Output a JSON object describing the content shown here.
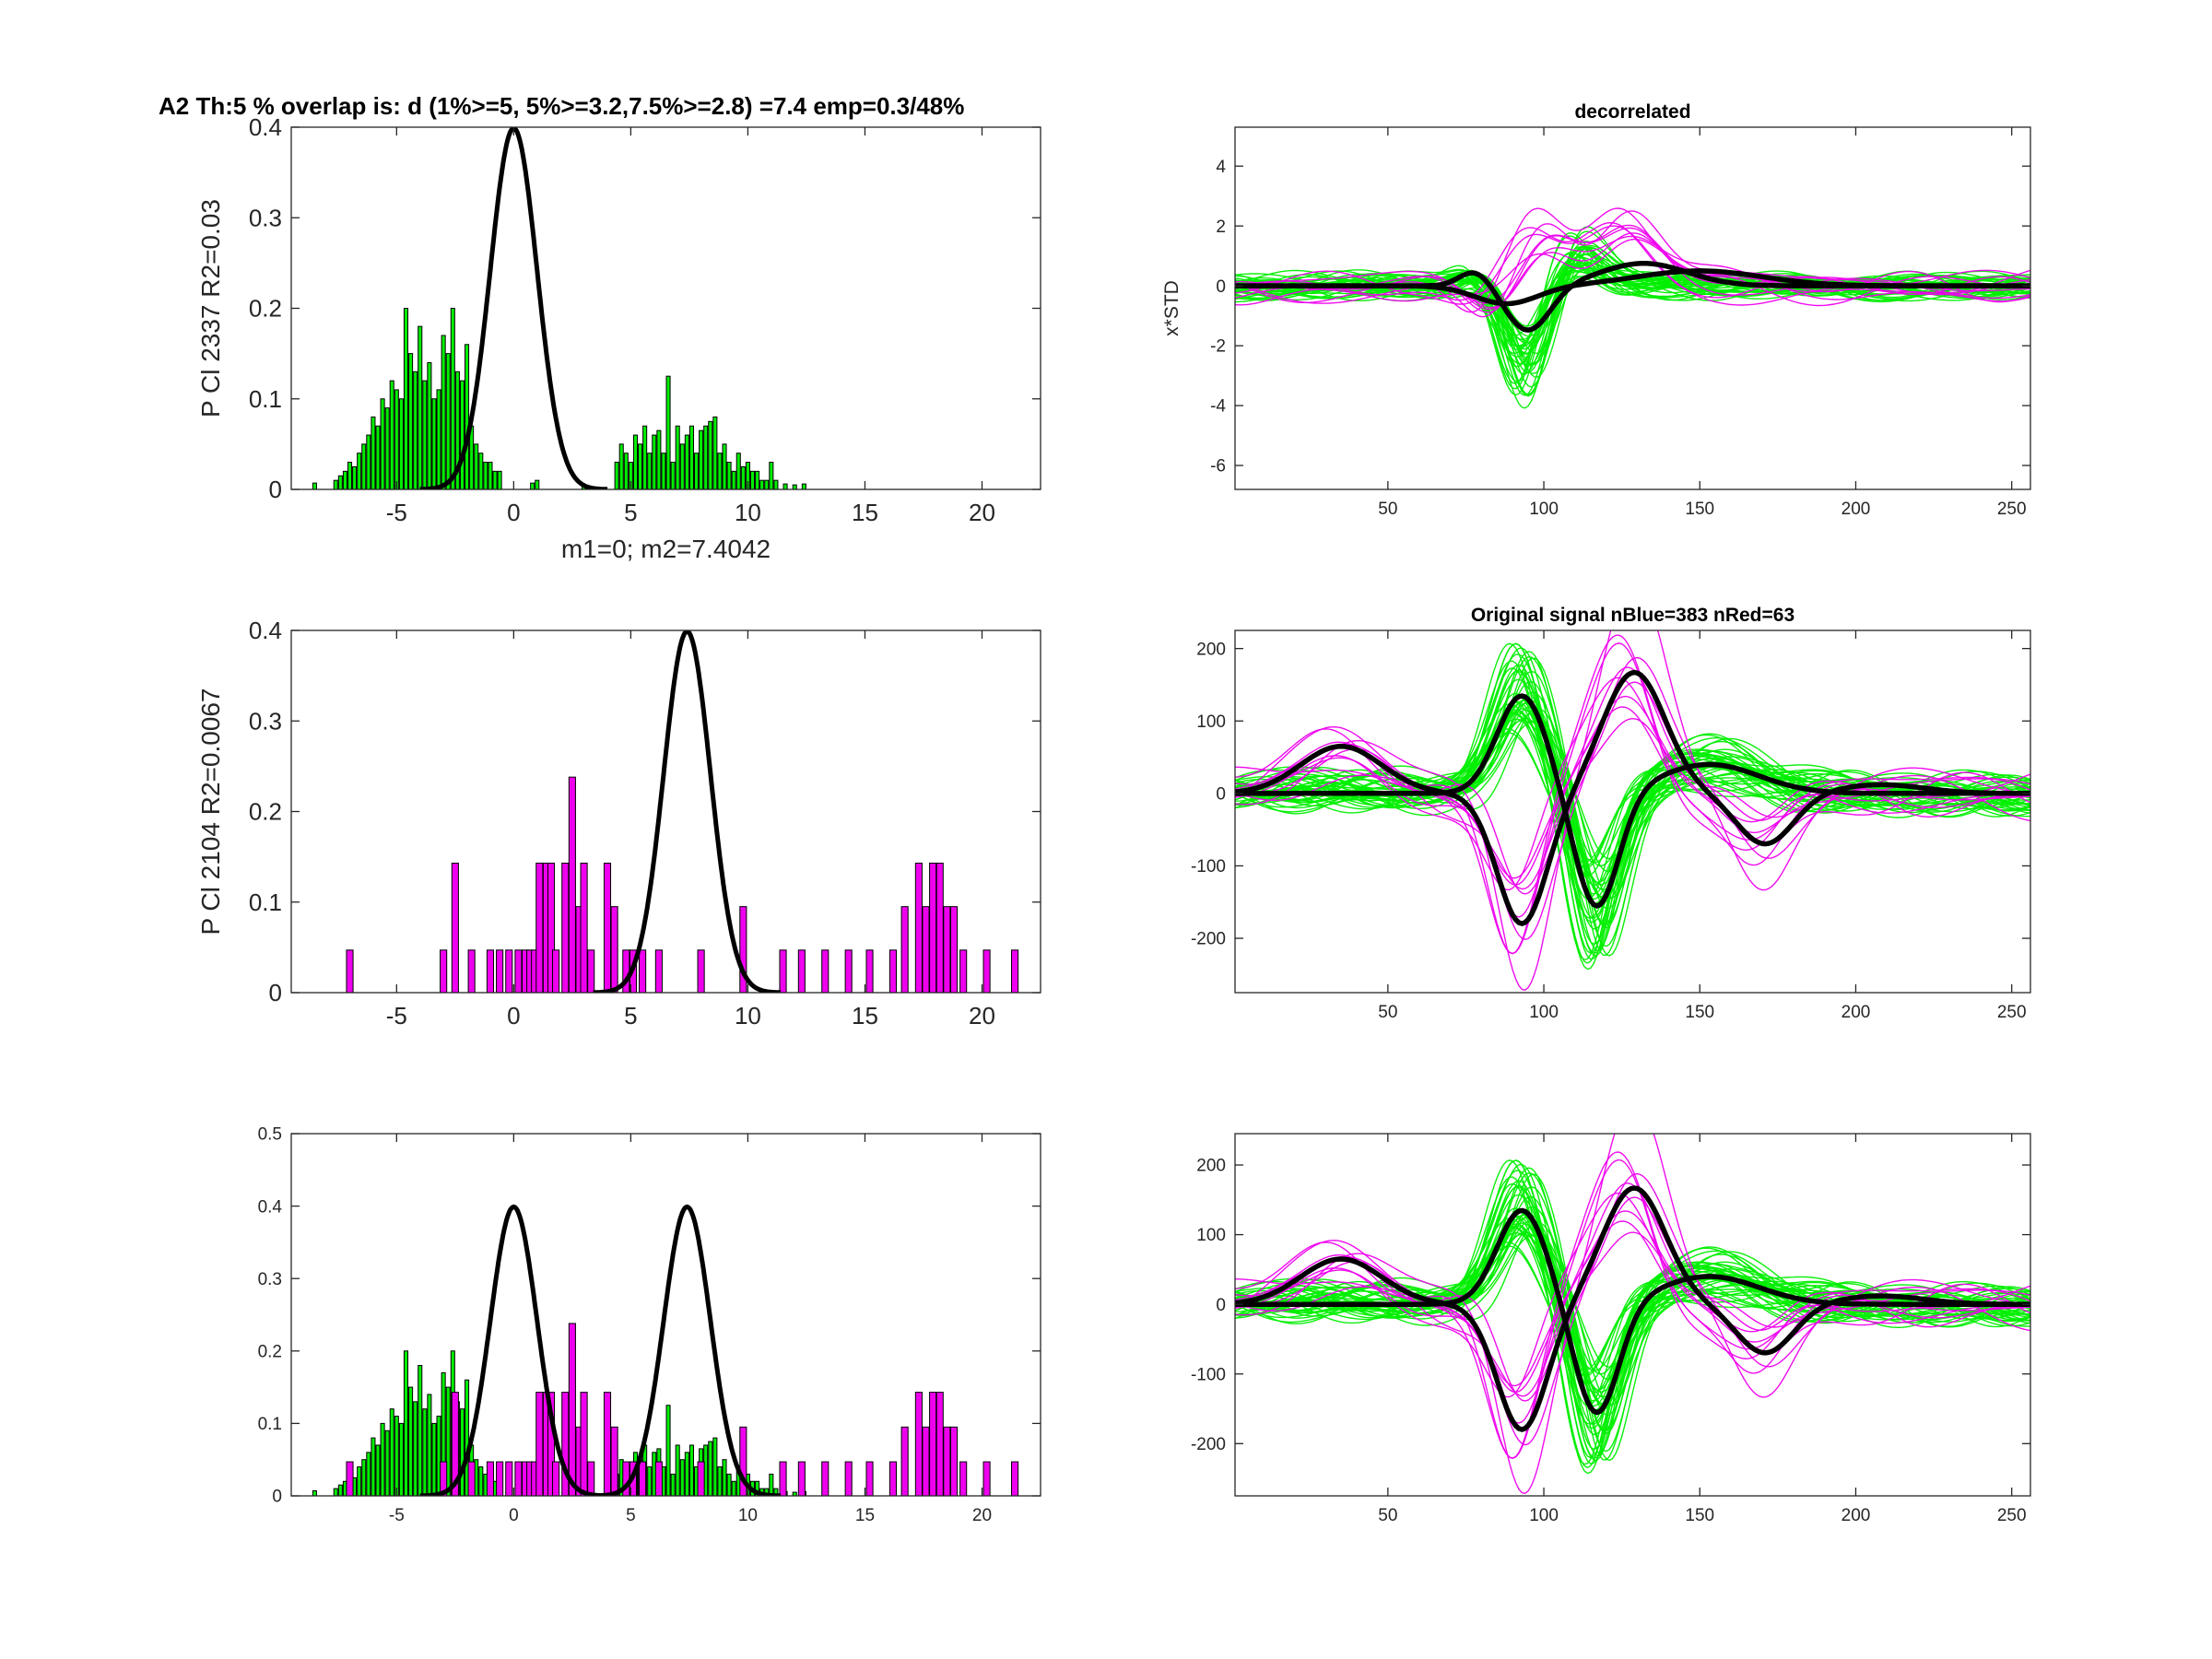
{
  "figure": {
    "suptitle": "A2 Th:5 % overlap is: d (1%>=5, 5%>=3.2,7.5%>=2.8) =7.4 emp=0.3/48%",
    "colors": {
      "green": "#00ee00",
      "magenta": "#ee00ee",
      "black": "#000000",
      "gray": "#888888"
    }
  },
  "chart_data": [
    {
      "id": "hist1",
      "type": "bar",
      "ylabel": "P Cl 2337 R2=0.03",
      "xlabel": "m1=0; m2=7.4042",
      "xlim": [
        -9.5,
        22.5
      ],
      "ylim": [
        0,
        0.4
      ],
      "xticks": [
        -5,
        0,
        5,
        10,
        15,
        20
      ],
      "yticks": [
        0,
        0.1,
        0.2,
        0.3,
        0.4
      ],
      "series": [
        {
          "color": "green",
          "x": [
            -8.5,
            -7.6,
            -7.4,
            -7.2,
            -7.0,
            -6.8,
            -6.6,
            -6.4,
            -6.2,
            -6.0,
            -5.8,
            -5.6,
            -5.4,
            -5.2,
            -5.0,
            -4.8,
            -4.6,
            -4.4,
            -4.2,
            -4.0,
            -3.8,
            -3.6,
            -3.4,
            -3.2,
            -3.0,
            -2.8,
            -2.6,
            -2.4,
            -2.2,
            -2.0,
            -1.8,
            -1.6,
            -1.4,
            -1.2,
            -1.0,
            -0.8,
            -0.6,
            0.8,
            1.0,
            3.0,
            4.4,
            4.6,
            4.8,
            5.0,
            5.2,
            5.4,
            5.6,
            5.8,
            6.0,
            6.2,
            6.4,
            6.6,
            6.8,
            7.0,
            7.2,
            7.4,
            7.6,
            7.8,
            8.0,
            8.2,
            8.4,
            8.6,
            8.8,
            9.0,
            9.2,
            9.4,
            9.6,
            9.8,
            10.0,
            10.2,
            10.4,
            10.6,
            10.8,
            11.0,
            11.2,
            11.6,
            12.0,
            12.4
          ],
          "values": [
            0.007,
            0.01,
            0.015,
            0.02,
            0.03,
            0.025,
            0.04,
            0.05,
            0.06,
            0.08,
            0.07,
            0.1,
            0.09,
            0.12,
            0.11,
            0.1,
            0.2,
            0.15,
            0.13,
            0.18,
            0.12,
            0.14,
            0.1,
            0.11,
            0.17,
            0.15,
            0.2,
            0.13,
            0.12,
            0.16,
            0.07,
            0.05,
            0.04,
            0.03,
            0.03,
            0.02,
            0.02,
            0.007,
            0.01,
            0.003,
            0.03,
            0.05,
            0.04,
            0.03,
            0.06,
            0.05,
            0.07,
            0.04,
            0.06,
            0.065,
            0.04,
            0.125,
            0.03,
            0.07,
            0.05,
            0.06,
            0.07,
            0.04,
            0.065,
            0.07,
            0.075,
            0.08,
            0.04,
            0.05,
            0.03,
            0.02,
            0.04,
            0.025,
            0.03,
            0.02,
            0.02,
            0.01,
            0.01,
            0.03,
            0.01,
            0.006,
            0.005,
            0.006
          ],
          "barwidth": 0.16
        }
      ],
      "curves": [
        {
          "mean": 0,
          "sd": 1,
          "xmin": -4,
          "xmax": 4
        }
      ]
    },
    {
      "id": "hist2",
      "type": "bar",
      "ylabel": "P Cl 2104 R2=0.0067",
      "xlim": [
        -9.5,
        22.5
      ],
      "ylim": [
        0,
        0.4
      ],
      "xticks": [
        -5,
        0,
        5,
        10,
        15,
        20
      ],
      "yticks": [
        0,
        0.1,
        0.2,
        0.3,
        0.4
      ],
      "series": [
        {
          "color": "magenta",
          "x": [
            -7.0,
            -3.0,
            -2.5,
            -1.8,
            -1.0,
            -0.6,
            -0.2,
            0.2,
            0.5,
            0.7,
            0.9,
            1.1,
            1.4,
            1.6,
            1.8,
            2.2,
            2.5,
            2.8,
            3.0,
            3.3,
            4.0,
            4.3,
            4.8,
            5.1,
            5.5,
            6.2,
            8.0,
            9.8,
            11.5,
            12.3,
            13.3,
            14.3,
            15.2,
            16.2,
            16.7,
            17.3,
            17.6,
            17.9,
            18.2,
            18.5,
            18.8,
            19.2,
            20.2,
            21.4
          ],
          "values": [
            0.047,
            0.047,
            0.143,
            0.047,
            0.047,
            0.047,
            0.047,
            0.047,
            0.047,
            0.047,
            0.047,
            0.143,
            0.143,
            0.143,
            0.047,
            0.143,
            0.238,
            0.095,
            0.143,
            0.047,
            0.143,
            0.095,
            0.047,
            0.047,
            0.047,
            0.047,
            0.047,
            0.095,
            0.047,
            0.047,
            0.047,
            0.047,
            0.047,
            0.047,
            0.095,
            0.143,
            0.095,
            0.143,
            0.143,
            0.095,
            0.095,
            0.047,
            0.047,
            0.047
          ],
          "barwidth": 0.28
        }
      ],
      "curves": [
        {
          "mean": 7.4042,
          "sd": 1,
          "xmin": 3.4,
          "xmax": 11.4
        }
      ]
    },
    {
      "id": "hist3",
      "type": "bar",
      "xlim": [
        -9.5,
        22.5
      ],
      "ylim": [
        0,
        0.5
      ],
      "xticks": [
        -5,
        0,
        5,
        10,
        15,
        20
      ],
      "yticks": [
        0,
        0.1,
        0.2,
        0.3,
        0.4,
        0.5
      ],
      "series_refs": [
        "hist1",
        "hist2"
      ],
      "curves": [
        {
          "mean": 0,
          "sd": 1,
          "xmin": -4,
          "xmax": 4
        },
        {
          "mean": 7.4042,
          "sd": 1,
          "xmin": 3.4,
          "xmax": 11.4
        }
      ]
    },
    {
      "id": "wave1",
      "type": "line",
      "title": "decorrelated",
      "ylabel": "x*STD",
      "xlim": [
        1,
        256
      ],
      "ylim": [
        -6.8,
        5.3
      ],
      "xticks": [
        50,
        100,
        150,
        200,
        250
      ],
      "yticks": [
        -6,
        -4,
        -2,
        0,
        2,
        4
      ],
      "bundles": [
        {
          "color": "green",
          "count": 36,
          "amp": 1.0,
          "noise": 0.45,
          "seed": 11,
          "comps": [
            {
              "c": 95,
              "w": 7,
              "a": -2.8
            },
            {
              "c": 110,
              "w": 8,
              "a": 1.2
            },
            {
              "c": 80,
              "w": 6,
              "a": 0.4
            }
          ]
        },
        {
          "color": "magenta",
          "count": 9,
          "amp": 1.0,
          "noise": 0.55,
          "seed": 29,
          "comps": [
            {
              "c": 98,
              "w": 9,
              "a": 1.8
            },
            {
              "c": 125,
              "w": 10,
              "a": 2.0
            },
            {
              "c": 80,
              "w": 8,
              "a": -1.0
            }
          ]
        }
      ],
      "means": [
        {
          "comps": [
            {
              "c": 95,
              "w": 7,
              "a": -1.5
            },
            {
              "c": 132,
              "w": 14,
              "a": 0.75
            },
            {
              "c": 78,
              "w": 5,
              "a": 0.5
            }
          ]
        },
        {
          "comps": [
            {
              "c": 88,
              "w": 10,
              "a": -0.6
            },
            {
              "c": 150,
              "w": 20,
              "a": 0.5
            }
          ]
        }
      ]
    },
    {
      "id": "wave2",
      "type": "line",
      "title": "Original signal nBlue=383 nRed=63",
      "xlim": [
        1,
        256
      ],
      "ylim": [
        -275,
        225
      ],
      "xticks": [
        50,
        100,
        150,
        200,
        250
      ],
      "yticks": [
        -200,
        -100,
        0,
        100,
        200
      ],
      "bundles": [
        {
          "color": "green",
          "count": 40,
          "amp": 1.0,
          "noise": 28,
          "seed": 7,
          "comps": [
            {
              "c": 93,
              "w": 8,
              "a": 140
            },
            {
              "c": 117,
              "w": 7,
              "a": -165
            },
            {
              "c": 153,
              "w": 14,
              "a": 40
            },
            {
              "c": 40,
              "w": 14,
              "a": 10
            }
          ]
        },
        {
          "color": "magenta",
          "count": 10,
          "amp": 1.0,
          "noise": 35,
          "seed": 53,
          "comps": [
            {
              "c": 93,
              "w": 8,
              "a": -180
            },
            {
              "c": 128,
              "w": 10,
              "a": 180
            },
            {
              "c": 170,
              "w": 9,
              "a": -70
            },
            {
              "c": 38,
              "w": 13,
              "a": 60
            }
          ]
        }
      ],
      "means": [
        {
          "comps": [
            {
              "c": 93,
              "w": 8,
              "a": 135
            },
            {
              "c": 117,
              "w": 7,
              "a": -160
            },
            {
              "c": 153,
              "w": 16,
              "a": 40
            },
            {
              "c": 40,
              "w": 16,
              "a": 0
            }
          ]
        },
        {
          "comps": [
            {
              "c": 93,
              "w": 8,
              "a": -180
            },
            {
              "c": 129,
              "w": 10,
              "a": 167
            },
            {
              "c": 171,
              "w": 9,
              "a": -70
            },
            {
              "c": 35,
              "w": 13,
              "a": 65
            },
            {
              "c": 208,
              "w": 14,
              "a": 12
            }
          ]
        }
      ]
    },
    {
      "id": "wave3",
      "type": "line",
      "xlim": [
        1,
        256
      ],
      "ylim": [
        -275,
        245
      ],
      "xticks": [
        50,
        100,
        150,
        200,
        250
      ],
      "yticks": [
        -200,
        -100,
        0,
        100,
        200
      ],
      "bundles_ref": "wave2",
      "means_ref": "wave2"
    }
  ]
}
